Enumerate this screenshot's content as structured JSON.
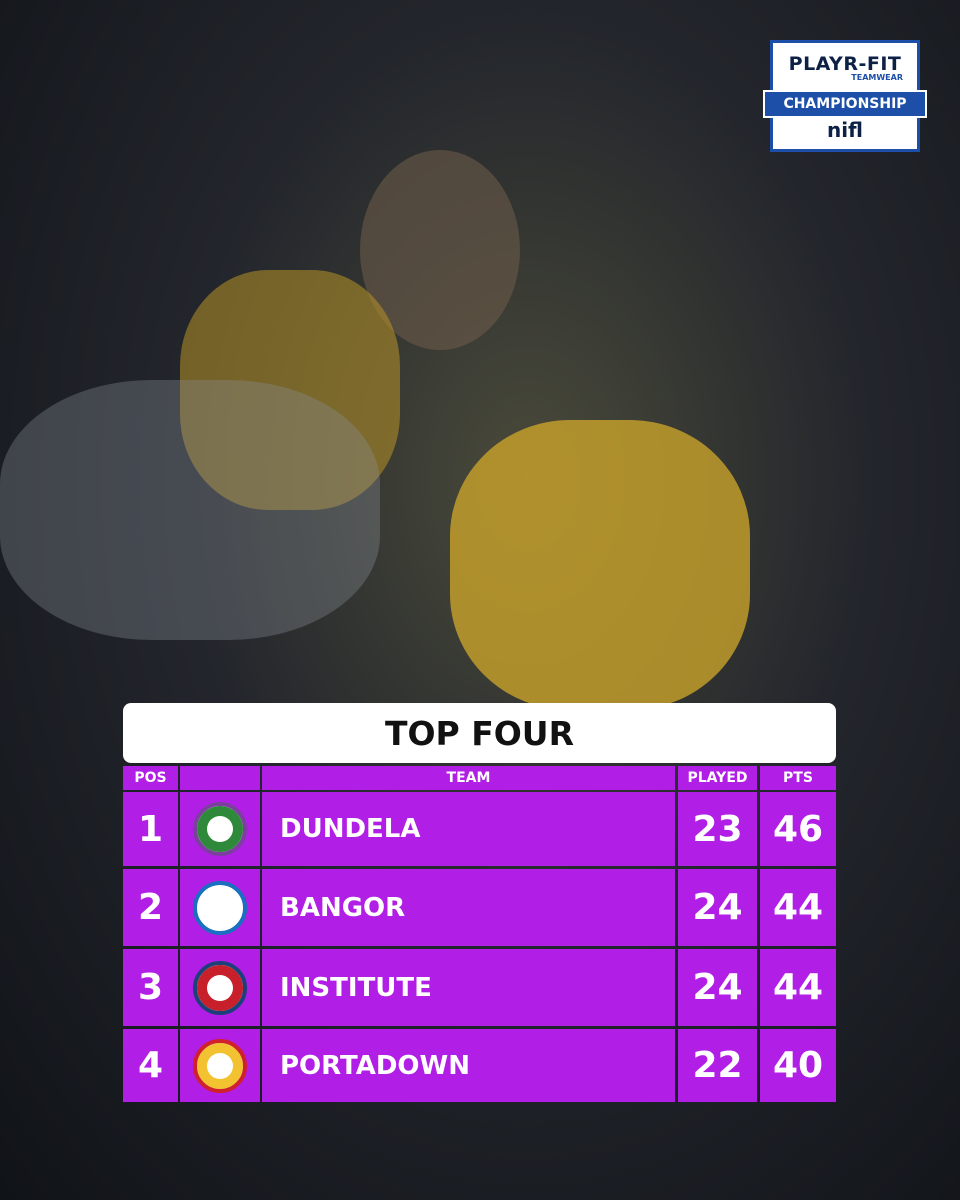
{
  "sponsor_logo": {
    "brand": "PLAYR-FIT",
    "tagline": "TEAMWEAR",
    "competition": "CHAMPIONSHIP",
    "league": "nifl"
  },
  "table": {
    "title": "TOP FOUR",
    "headers": [
      "POS",
      "TEAM",
      "PLAYED",
      "PTS"
    ],
    "rows": [
      {
        "pos": 1,
        "team": "DUNDELA",
        "played": 23,
        "pts": 46
      },
      {
        "pos": 2,
        "team": "BANGOR",
        "played": 24,
        "pts": 44
      },
      {
        "pos": 3,
        "team": "INSTITUTE",
        "played": 24,
        "pts": 44
      },
      {
        "pos": 4,
        "team": "PORTADOWN",
        "played": 22,
        "pts": 40
      }
    ]
  }
}
